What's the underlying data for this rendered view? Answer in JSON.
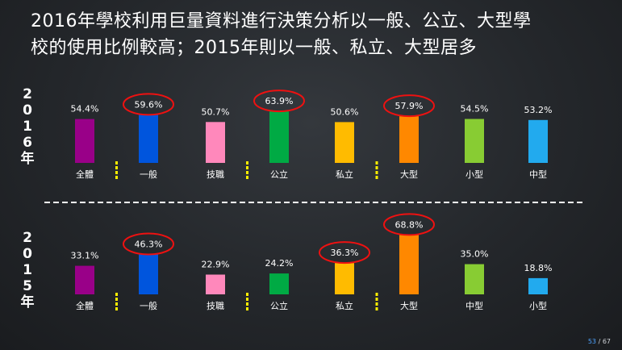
{
  "slide": {
    "title_line1": "2016年學校利用巨量資料進行決策分析以一般、公立、大型學",
    "title_line2": "校的使用比例較高；2015年則以一般、私立、大型居多",
    "page_current": "53",
    "page_total": "/ 67"
  },
  "chart_data": [
    {
      "type": "bar",
      "year_label": [
        "2",
        "0",
        "1",
        "6",
        "年"
      ],
      "categories": [
        "全體",
        "一般",
        "技職",
        "公立",
        "私立",
        "大型",
        "小型",
        "中型"
      ],
      "values": [
        54.4,
        59.6,
        50.7,
        63.9,
        50.6,
        57.9,
        54.5,
        53.2
      ],
      "data_labels": [
        "54.4%",
        "59.6%",
        "50.7%",
        "63.9%",
        "50.6%",
        "57.9%",
        "54.5%",
        "53.2%"
      ],
      "colors": [
        "#990088",
        "#0055dd",
        "#ff88bb",
        "#00aa44",
        "#ffbb00",
        "#ff8800",
        "#88cc33",
        "#22aaee"
      ],
      "highlighted": [
        1,
        3,
        5
      ],
      "separators_after": [
        0,
        2,
        4
      ]
    },
    {
      "type": "bar",
      "year_label": [
        "2",
        "0",
        "1",
        "5",
        "年"
      ],
      "categories": [
        "全體",
        "一般",
        "技職",
        "公立",
        "私立",
        "大型",
        "中型",
        "小型"
      ],
      "values": [
        33.1,
        46.3,
        22.9,
        24.2,
        36.3,
        68.8,
        35.0,
        18.8
      ],
      "data_labels": [
        "33.1%",
        "46.3%",
        "22.9%",
        "24.2%",
        "36.3%",
        "68.8%",
        "35.0%",
        "18.8%"
      ],
      "colors": [
        "#990088",
        "#0055dd",
        "#ff88bb",
        "#00aa44",
        "#ffbb00",
        "#ff8800",
        "#88cc33",
        "#22aaee"
      ],
      "highlighted": [
        1,
        4,
        5
      ],
      "separators_after": [
        0,
        2,
        4
      ]
    }
  ]
}
